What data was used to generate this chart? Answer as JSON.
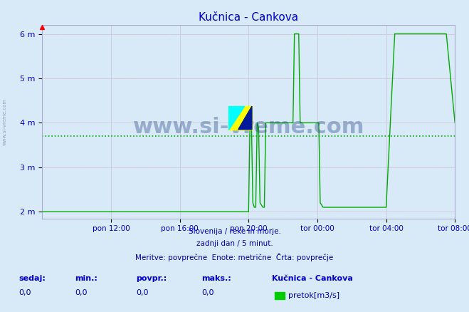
{
  "title": "Kučnica - Cankova",
  "bg_color": "#d8eaf8",
  "plot_bg_color": "#d8eaf8",
  "line_color": "#00aa00",
  "avg_line_color": "#00aa00",
  "avg_line_style": "dotted",
  "avg_value": 3.7,
  "ylabel_color": "#0000cc",
  "grid_color_major": "#ff9999",
  "grid_color_minor": "#ccccdd",
  "title_color": "#0000cc",
  "yticks": [
    2,
    3,
    4,
    5,
    6
  ],
  "ytick_labels": [
    "2 m",
    "3 m",
    "4 m",
    "5 m",
    "6 m"
  ],
  "ylim": [
    1.85,
    6.2
  ],
  "xlabel_color": "#0000cc",
  "xtick_labels": [
    "pon 12:00",
    "pon 16:00",
    "pon 20:00",
    "tor 00:00",
    "tor 04:00",
    "tor 08:00"
  ],
  "footer_line1": "Slovenija / reke in morje.",
  "footer_line2": "zadnji dan / 5 minut.",
  "footer_line3": "Meritve: povprečne  Enote: metrične  Črta: povprečje",
  "legend_station": "Kučnica - Cankova",
  "legend_label": "pretok[m3/s]",
  "stat_labels": [
    "sedaj:",
    "min.:",
    "povpr.:",
    "maks.:"
  ],
  "stat_values": [
    "0,0",
    "0,0",
    "0,0",
    "0,0"
  ],
  "watermark": "www.si-vreme.com",
  "watermark_color": "#1a3a7a",
  "left_label": "www.si-vreme.com",
  "data_x_hours": [
    0,
    0.5,
    1.0,
    1.5,
    2.0,
    2.5,
    3.0,
    3.5,
    4.0,
    4.5,
    5.0,
    5.5,
    6.0,
    6.5,
    7.0,
    7.5,
    8.0,
    8.5,
    9.0,
    9.5,
    10.0,
    10.5,
    11.0,
    11.5,
    12.0,
    12.083,
    12.167,
    12.25,
    12.333,
    12.417,
    12.5,
    12.583,
    12.667,
    12.75,
    12.833,
    12.917,
    13.0,
    13.083,
    13.167,
    13.25,
    13.333,
    13.5,
    13.667,
    13.75,
    13.833,
    13.917,
    14.0,
    14.083,
    14.167,
    14.25,
    14.333,
    14.417,
    14.5,
    14.583,
    14.667,
    14.75,
    14.917,
    15.0,
    15.083,
    15.167,
    15.25,
    15.333,
    15.417,
    15.5,
    15.583,
    15.667,
    15.75,
    15.833,
    15.917,
    16.0,
    16.083,
    16.167,
    16.333,
    16.5,
    16.583,
    16.667,
    16.75,
    16.833,
    16.917,
    17.0,
    17.5,
    18.0,
    18.5,
    19.0,
    19.5,
    20.0,
    20.5,
    21.0,
    21.5,
    22.0,
    22.5,
    23.0,
    23.5,
    24.0
  ],
  "data_y": [
    2.0,
    2.0,
    2.0,
    2.0,
    2.0,
    2.0,
    2.0,
    2.0,
    2.0,
    2.0,
    2.0,
    2.0,
    2.0,
    2.0,
    2.0,
    2.0,
    2.0,
    2.0,
    2.0,
    2.0,
    2.0,
    2.0,
    2.0,
    2.0,
    2.0,
    4.0,
    4.0,
    2.2,
    2.1,
    2.1,
    4.0,
    3.9,
    2.2,
    2.15,
    2.1,
    2.1,
    4.0,
    4.0,
    4.0,
    4.0,
    4.0,
    4.0,
    4.0,
    4.0,
    4.0,
    4.0,
    4.0,
    4.0,
    4.0,
    4.0,
    4.0,
    4.0,
    4.0,
    4.0,
    6.0,
    6.0,
    6.0,
    4.0,
    4.0,
    4.0,
    4.0,
    4.0,
    4.0,
    4.0,
    4.0,
    4.0,
    4.0,
    4.0,
    4.0,
    4.0,
    4.0,
    2.2,
    2.1,
    2.1,
    2.1,
    2.1,
    2.1,
    2.1,
    2.1,
    2.1,
    2.1,
    2.1,
    2.1,
    2.1,
    2.1,
    2.1,
    6.0,
    6.0,
    6.0,
    6.0,
    6.0,
    6.0,
    6.0,
    4.0
  ]
}
